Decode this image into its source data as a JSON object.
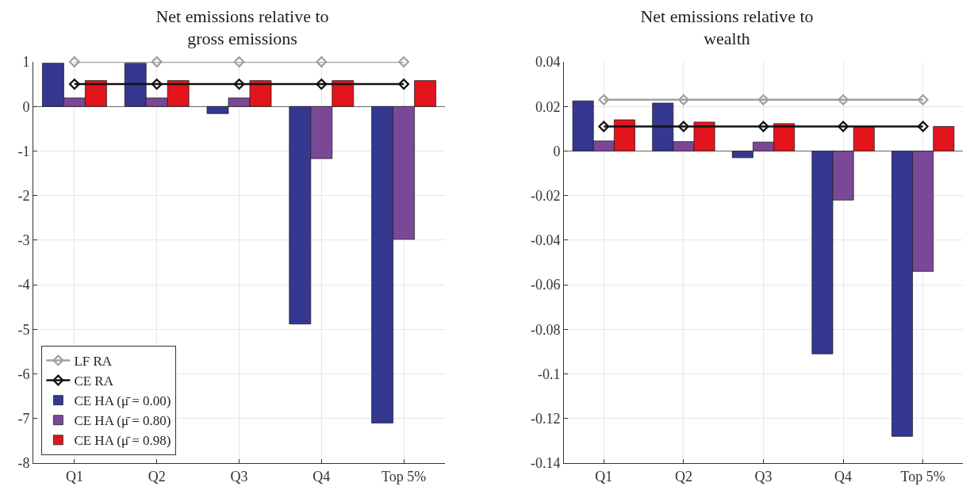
{
  "chart_data": [
    {
      "type": "bar",
      "title": "Net emissions relative to gross emissions",
      "categories": [
        "Q1",
        "Q2",
        "Q3",
        "Q4",
        "Top 5%"
      ],
      "ylim": [
        -8,
        1
      ],
      "yticks": [
        -8,
        -7,
        -6,
        -5,
        -4,
        -3,
        -2,
        -1,
        0,
        1
      ],
      "grid": true,
      "legend": "bottom left",
      "series": [
        {
          "name": "LF RA",
          "type": "line",
          "marker": "diamond",
          "color": "#a0a0a0",
          "values": [
            1,
            1,
            1,
            1,
            1
          ]
        },
        {
          "name": "CE RA",
          "type": "line",
          "marker": "diamond",
          "color": "#111111",
          "values": [
            0.5,
            0.5,
            0.5,
            0.5,
            0.5
          ]
        },
        {
          "name": "CE HA (μ̄ = 0.00)",
          "color": "#343891",
          "values": [
            0.97,
            0.97,
            -0.16,
            -4.88,
            -7.1
          ]
        },
        {
          "name": "CE HA (μ̄ = 0.80)",
          "color": "#7b4898",
          "values": [
            0.19,
            0.19,
            0.19,
            -1.17,
            -2.98
          ]
        },
        {
          "name": "CE HA (μ̄ = 0.98)",
          "color": "#e3141c",
          "values": [
            0.58,
            0.58,
            0.58,
            0.58,
            0.58
          ]
        }
      ]
    },
    {
      "type": "bar",
      "title": "Net emissions relative to wealth",
      "categories": [
        "Q1",
        "Q2",
        "Q3",
        "Q4",
        "Top 5%"
      ],
      "ylim": [
        -0.14,
        0.04
      ],
      "yticks": [
        -0.14,
        -0.12,
        -0.1,
        -0.08,
        -0.06,
        -0.04,
        -0.02,
        0,
        0.02,
        0.04
      ],
      "grid": true,
      "series": [
        {
          "type": "line",
          "marker": "diamond",
          "color": "#a0a0a0",
          "values": [
            0.023,
            0.023,
            0.023,
            0.023,
            0.023
          ]
        },
        {
          "type": "line",
          "marker": "diamond",
          "color": "#111111",
          "values": [
            0.011,
            0.011,
            0.011,
            0.011,
            0.011
          ]
        },
        {
          "color": "#343891",
          "values": [
            0.0225,
            0.0215,
            -0.003,
            -0.091,
            -0.128
          ]
        },
        {
          "color": "#7b4898",
          "values": [
            0.0045,
            0.0042,
            0.004,
            -0.022,
            -0.054
          ]
        },
        {
          "color": "#e3141c",
          "values": [
            0.014,
            0.013,
            0.0123,
            0.011,
            0.011
          ]
        }
      ]
    }
  ]
}
